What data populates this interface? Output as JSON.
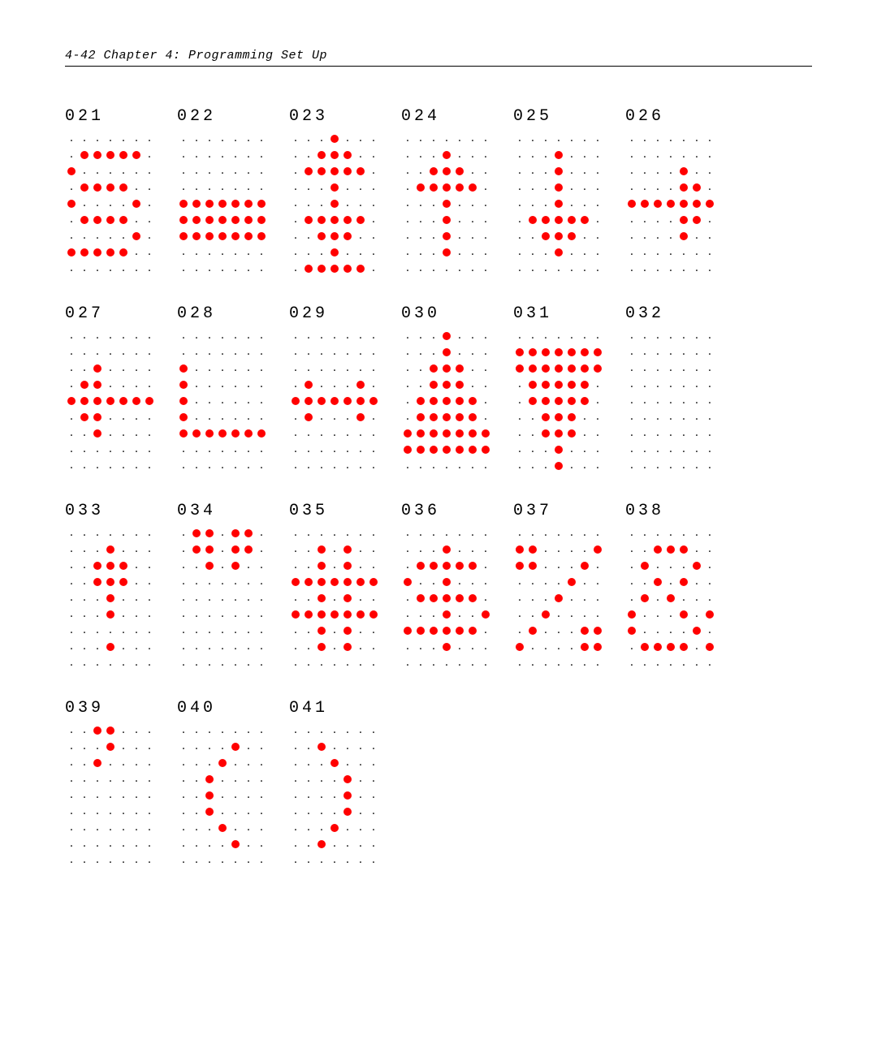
{
  "header": "4-42   Chapter 4:  Programming Set Up",
  "on_color": "#ff0000",
  "glyphs": [
    {
      "code": "021",
      "rows": [
        ".......",
        ".OOOOO.",
        "O......",
        ".OOOO..",
        "O....O.",
        ".OOOO..",
        ".....O.",
        "OOOOO..",
        "......."
      ]
    },
    {
      "code": "022",
      "rows": [
        ".......",
        ".......",
        ".......",
        ".......",
        "OOOOOOO",
        "OOOOOOO",
        "OOOOOOO",
        ".......",
        "......."
      ]
    },
    {
      "code": "023",
      "rows": [
        "...O...",
        "..OOO..",
        ".OOOOO.",
        "...O...",
        "...O...",
        ".OOOOO.",
        "..OOO..",
        "...O...",
        ".OOOOO."
      ]
    },
    {
      "code": "024",
      "rows": [
        ".......",
        "...O...",
        "..OOO..",
        ".OOOOO.",
        "...O...",
        "...O...",
        "...O...",
        "...O...",
        "......."
      ]
    },
    {
      "code": "025",
      "rows": [
        ".......",
        "...O...",
        "...O...",
        "...O...",
        "...O...",
        ".OOOOO.",
        "..OOO..",
        "...O...",
        "......."
      ]
    },
    {
      "code": "026",
      "rows": [
        ".......",
        ".......",
        "....O..",
        "....OO.",
        "OOOOOOO",
        "....OO.",
        "....O..",
        ".......",
        "......."
      ]
    },
    {
      "code": "027",
      "rows": [
        ".......",
        ".......",
        "..O....",
        ".OO....",
        "OOOOOOO",
        ".OO....",
        "..O....",
        ".......",
        "......."
      ]
    },
    {
      "code": "028",
      "rows": [
        ".......",
        ".......",
        "O......",
        "O......",
        "O......",
        "O......",
        "OOOOOOO",
        ".......",
        "......."
      ]
    },
    {
      "code": "029",
      "rows": [
        ".......",
        ".......",
        ".......",
        ".O...O.",
        "OOOOOOO",
        ".O...O.",
        ".......",
        ".......",
        "......."
      ]
    },
    {
      "code": "030",
      "rows": [
        "...O...",
        "...O...",
        "..OOO..",
        "..OOO..",
        ".OOOOO.",
        ".OOOOO.",
        "OOOOOOO",
        "OOOOOOO",
        "......."
      ]
    },
    {
      "code": "031",
      "rows": [
        ".......",
        "OOOOOOO",
        "OOOOOOO",
        ".OOOOO.",
        ".OOOOO.",
        "..OOO..",
        "..OOO..",
        "...O...",
        "...O..."
      ]
    },
    {
      "code": "032",
      "rows": [
        ".......",
        ".......",
        ".......",
        ".......",
        ".......",
        ".......",
        ".......",
        ".......",
        "......."
      ]
    },
    {
      "code": "033",
      "rows": [
        ".......",
        "...O...",
        "..OOO..",
        "..OOO..",
        "...O...",
        "...O...",
        ".......",
        "...O...",
        "......."
      ]
    },
    {
      "code": "034",
      "rows": [
        ".OO.OO.",
        ".OO.OO.",
        "..O.O..",
        ".......",
        ".......",
        ".......",
        ".......",
        ".......",
        "......."
      ]
    },
    {
      "code": "035",
      "rows": [
        ".......",
        "..O.O..",
        "..O.O..",
        "OOOOOOO",
        "..O.O..",
        "OOOOOOO",
        "..O.O..",
        "..O.O..",
        "......."
      ]
    },
    {
      "code": "036",
      "rows": [
        ".......",
        "...O...",
        ".OOOOO.",
        "O..O...",
        ".OOOOO.",
        "...O..O",
        "OOOOOO.",
        "...O...",
        "......."
      ]
    },
    {
      "code": "037",
      "rows": [
        ".......",
        "OO....O",
        "OO...O.",
        "....O..",
        "...O...",
        "..O....",
        ".O...OO",
        "O....OO",
        "......."
      ]
    },
    {
      "code": "038",
      "rows": [
        ".......",
        "..OOO..",
        ".O...O.",
        "..O.O..",
        ".O.O...",
        "O...O.O",
        "O....O.",
        ".OOOO.O",
        "......."
      ]
    },
    {
      "code": "039",
      "rows": [
        "..OO...",
        "...O...",
        "..O....",
        ".......",
        ".......",
        ".......",
        ".......",
        ".......",
        "......."
      ]
    },
    {
      "code": "040",
      "rows": [
        ".......",
        "....O..",
        "...O...",
        "..O....",
        "..O....",
        "..O....",
        "...O...",
        "....O..",
        "......."
      ]
    },
    {
      "code": "041",
      "rows": [
        ".......",
        "..O....",
        "...O...",
        "....O..",
        "....O..",
        "....O..",
        "...O...",
        "..O....",
        "......."
      ]
    }
  ]
}
